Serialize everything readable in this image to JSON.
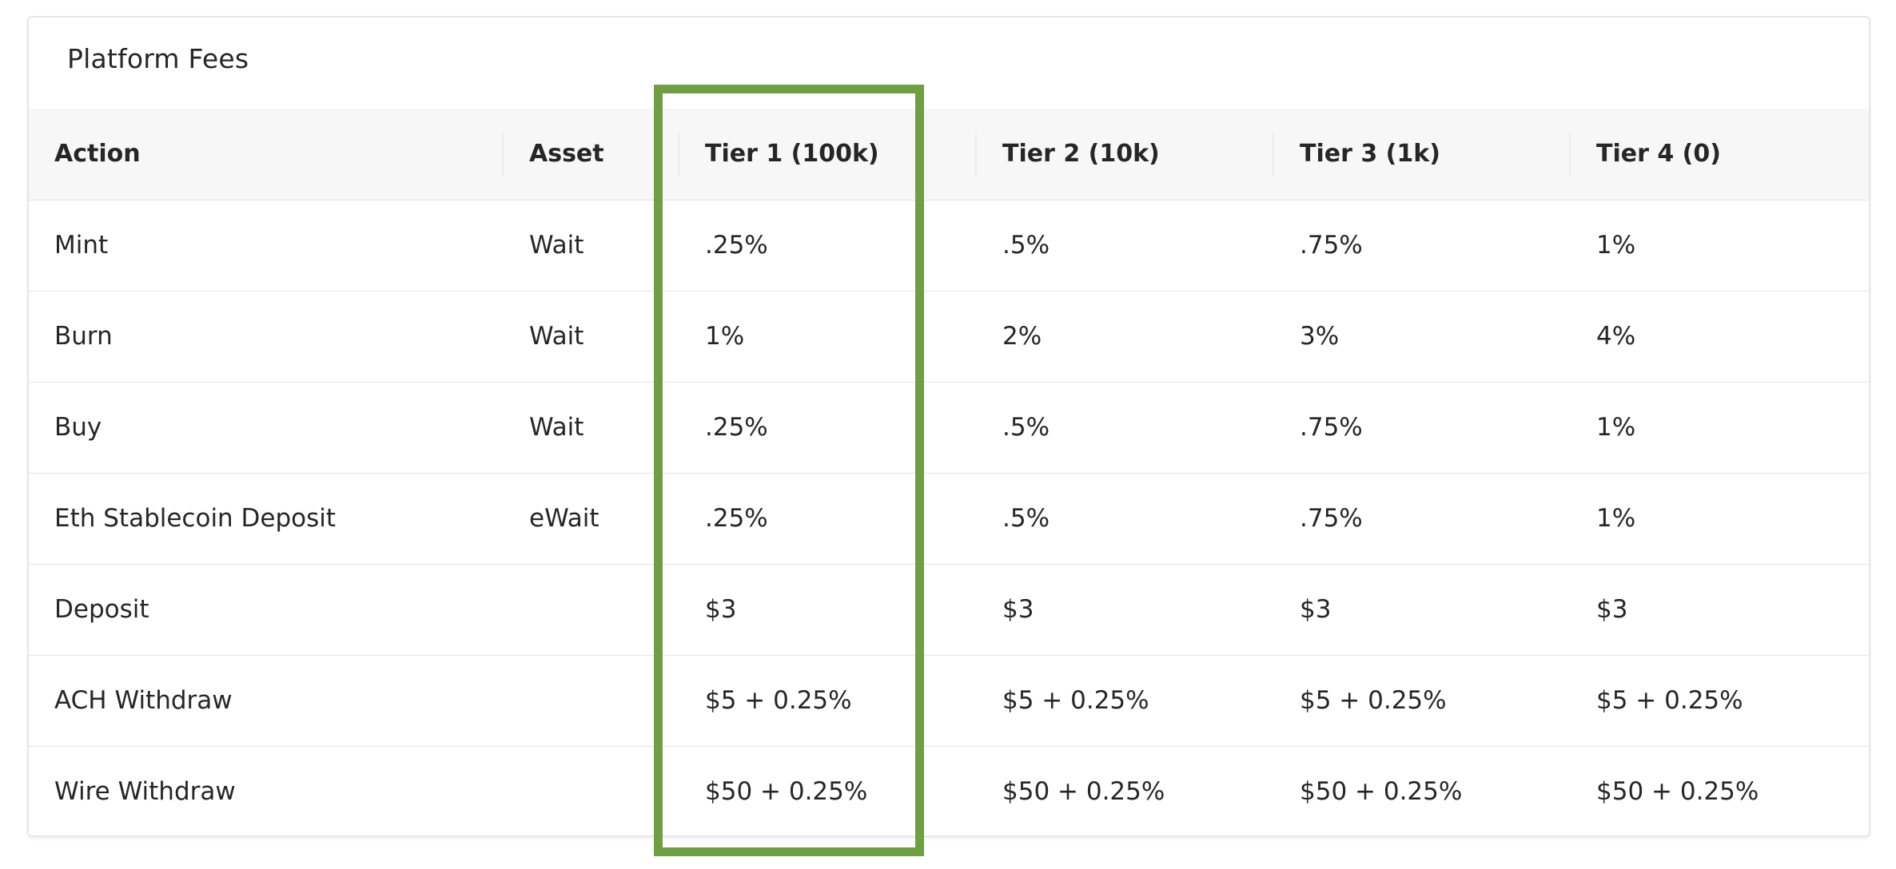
{
  "card": {
    "title": "Platform Fees"
  },
  "table": {
    "headers": {
      "action": "Action",
      "asset": "Asset",
      "tier1": "Tier 1 (100k)",
      "tier2": "Tier 2 (10k)",
      "tier3": "Tier 3 (1k)",
      "tier4": "Tier 4 (0)"
    },
    "rows": [
      {
        "action": "Mint",
        "asset": "Wait",
        "tier1": ".25%",
        "tier2": ".5%",
        "tier3": ".75%",
        "tier4": "1%"
      },
      {
        "action": "Burn",
        "asset": "Wait",
        "tier1": "1%",
        "tier2": "2%",
        "tier3": "3%",
        "tier4": "4%"
      },
      {
        "action": "Buy",
        "asset": "Wait",
        "tier1": ".25%",
        "tier2": ".5%",
        "tier3": ".75%",
        "tier4": "1%"
      },
      {
        "action": "Eth Stablecoin Deposit",
        "asset": "eWait",
        "tier1": ".25%",
        "tier2": ".5%",
        "tier3": ".75%",
        "tier4": "1%"
      },
      {
        "action": "Deposit",
        "asset": "",
        "tier1": "$3",
        "tier2": "$3",
        "tier3": "$3",
        "tier4": "$3"
      },
      {
        "action": "ACH Withdraw",
        "asset": "",
        "tier1": "$5 + 0.25%",
        "tier2": "$5 + 0.25%",
        "tier3": "$5 + 0.25%",
        "tier4": "$5 + 0.25%"
      },
      {
        "action": "Wire Withdraw",
        "asset": "",
        "tier1": "$50 + 0.25%",
        "tier2": "$50 + 0.25%",
        "tier3": "$50 + 0.25%",
        "tier4": "$50 + 0.25%"
      }
    ]
  },
  "highlight": {
    "color": "#6f9e45",
    "column": "tier1"
  }
}
